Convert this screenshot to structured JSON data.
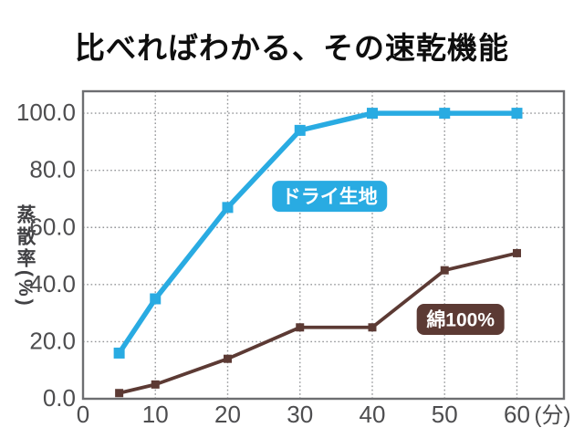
{
  "title": "比べればわかる、その速乾機能",
  "chart_data": {
    "type": "line",
    "title": "比べればわかる、その速乾機能",
    "xlabel": "",
    "x_unit_label": "(分)",
    "ylabel": "蒸散率(%)",
    "x": [
      5,
      10,
      20,
      30,
      40,
      50,
      60
    ],
    "series": [
      {
        "name": "ドライ生地",
        "color": "#29ABE2",
        "values": [
          16,
          35,
          67,
          94,
          100,
          100,
          100
        ],
        "marker": "square",
        "line_width": 5.5,
        "marker_size": 12
      },
      {
        "name": "綿100%",
        "color": "#5C3A34",
        "values": [
          2,
          5,
          14,
          25,
          25,
          45,
          51
        ],
        "marker": "square",
        "line_width": 3.8,
        "marker_size": 9
      }
    ],
    "xticks": {
      "values": [
        0,
        10,
        20,
        30,
        40,
        50,
        60
      ],
      "labels": [
        "0",
        "10",
        "20",
        "30",
        "40",
        "50",
        "60"
      ]
    },
    "yticks": {
      "values": [
        0,
        20,
        40,
        60,
        80,
        100
      ],
      "labels": [
        "0.0",
        "20.0",
        "40.0",
        "60.0",
        "80.0",
        "100.0"
      ]
    },
    "xlim": [
      0,
      66.5
    ],
    "ylim": [
      0,
      107.7
    ],
    "grid": "dotted",
    "legend_position": "inline-annotations",
    "annotations": [
      {
        "text": "ドライ生地",
        "x": 34.1,
        "y": 70.9,
        "bg": "#29ABE2",
        "fg": "#ffffff",
        "w": 126
      },
      {
        "text": "綿100%",
        "x": 52.2,
        "y": 27.8,
        "bg": "#5C3A34",
        "fg": "#ffffff",
        "w": 96
      }
    ],
    "colors": {
      "plot_border": "#6D6E71",
      "gridline": "#939598",
      "tick_text": "#4D4D4F",
      "title_text": "#0e0e0e",
      "background": "#ffffff"
    }
  }
}
